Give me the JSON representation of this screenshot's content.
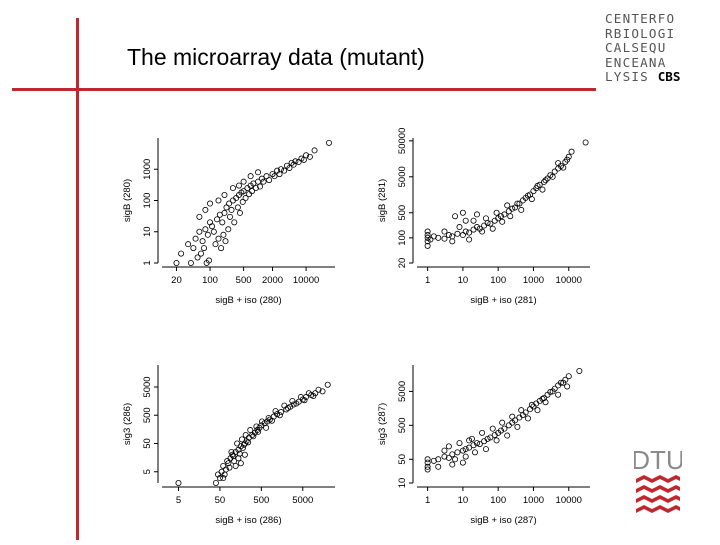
{
  "slide": {
    "title": "The microarray data (mutant)",
    "logo_cbs": {
      "rows": [
        "CENTERFO",
        "RBIOLOGI",
        "CALSEQU",
        "ENCEANA",
        "LYSIS"
      ],
      "strong": "CBS"
    },
    "logo_dtu": "DTU",
    "colors": {
      "accent": "#c1272d",
      "logo_gray": "#555555",
      "dtu_red": "#c1272d"
    }
  },
  "chart_data": [
    {
      "type": "scatter",
      "scale": "log",
      "xlabel": "sigB + iso (280)",
      "ylabel": "sigB (280)",
      "xticks": [
        "20",
        "100",
        "500",
        "2000",
        "10000"
      ],
      "yticks": [
        "1",
        "10",
        "100",
        "1000"
      ],
      "xlim": [
        10,
        40000
      ],
      "ylim": [
        1,
        10000
      ],
      "points": [
        [
          20,
          1
        ],
        [
          25,
          2
        ],
        [
          35,
          4
        ],
        [
          50,
          6
        ],
        [
          60,
          10
        ],
        [
          70,
          5
        ],
        [
          80,
          12
        ],
        [
          90,
          8
        ],
        [
          100,
          20
        ],
        [
          110,
          15
        ],
        [
          120,
          10
        ],
        [
          140,
          25
        ],
        [
          160,
          35
        ],
        [
          180,
          20
        ],
        [
          200,
          40
        ],
        [
          220,
          60
        ],
        [
          250,
          80
        ],
        [
          300,
          100
        ],
        [
          350,
          120
        ],
        [
          400,
          150
        ],
        [
          450,
          180
        ],
        [
          500,
          200
        ],
        [
          600,
          250
        ],
        [
          700,
          300
        ],
        [
          800,
          350
        ],
        [
          1000,
          400
        ],
        [
          1200,
          500
        ],
        [
          1500,
          600
        ],
        [
          2000,
          700
        ],
        [
          2500,
          900
        ],
        [
          3000,
          1000
        ],
        [
          4000,
          1300
        ],
        [
          5000,
          1600
        ],
        [
          6000,
          1800
        ],
        [
          8000,
          2200
        ],
        [
          10000,
          2800
        ],
        [
          15000,
          4000
        ],
        [
          30000,
          7000
        ],
        [
          40,
          1
        ],
        [
          45,
          3
        ],
        [
          55,
          1.5
        ],
        [
          65,
          2
        ],
        [
          75,
          3
        ],
        [
          85,
          1
        ],
        [
          95,
          1.2
        ],
        [
          130,
          4
        ],
        [
          150,
          6
        ],
        [
          170,
          3
        ],
        [
          190,
          8
        ],
        [
          210,
          5
        ],
        [
          240,
          12
        ],
        [
          260,
          30
        ],
        [
          280,
          50
        ],
        [
          320,
          20
        ],
        [
          380,
          60
        ],
        [
          420,
          40
        ],
        [
          480,
          90
        ],
        [
          550,
          120
        ],
        [
          650,
          160
        ],
        [
          750,
          200
        ],
        [
          900,
          250
        ],
        [
          1100,
          280
        ],
        [
          1300,
          400
        ],
        [
          1700,
          450
        ],
        [
          2200,
          600
        ],
        [
          2800,
          700
        ],
        [
          3500,
          900
        ],
        [
          4500,
          1100
        ],
        [
          5500,
          1400
        ],
        [
          7000,
          1700
        ],
        [
          9000,
          2000
        ],
        [
          12000,
          2500
        ],
        [
          60,
          30
        ],
        [
          80,
          50
        ],
        [
          100,
          80
        ],
        [
          150,
          100
        ],
        [
          200,
          150
        ],
        [
          300,
          250
        ],
        [
          400,
          300
        ],
        [
          500,
          400
        ],
        [
          700,
          600
        ],
        [
          1000,
          800
        ]
      ]
    },
    {
      "type": "scatter",
      "scale": "log",
      "xlabel": "sigB + iso (281)",
      "ylabel": "sigB (281)",
      "xticks": [
        "1",
        "10",
        "100",
        "1000",
        "10000"
      ],
      "yticks": [
        "20",
        "100",
        "500",
        "5000",
        "50000"
      ],
      "xlim": [
        0.5,
        40000
      ],
      "ylim": [
        20,
        60000
      ],
      "points": [
        [
          1,
          100
        ],
        [
          1,
          80
        ],
        [
          1,
          120
        ],
        [
          1,
          60
        ],
        [
          1,
          150
        ],
        [
          1.2,
          90
        ],
        [
          1.5,
          110
        ],
        [
          2,
          100
        ],
        [
          3,
          95
        ],
        [
          4,
          120
        ],
        [
          5,
          110
        ],
        [
          7,
          130
        ],
        [
          10,
          120
        ],
        [
          12,
          150
        ],
        [
          15,
          140
        ],
        [
          20,
          170
        ],
        [
          25,
          200
        ],
        [
          30,
          180
        ],
        [
          40,
          220
        ],
        [
          50,
          260
        ],
        [
          60,
          250
        ],
        [
          80,
          300
        ],
        [
          100,
          350
        ],
        [
          120,
          400
        ],
        [
          150,
          450
        ],
        [
          200,
          550
        ],
        [
          250,
          650
        ],
        [
          300,
          700
        ],
        [
          400,
          900
        ],
        [
          500,
          1100
        ],
        [
          600,
          1300
        ],
        [
          800,
          1600
        ],
        [
          1000,
          2000
        ],
        [
          1200,
          2400
        ],
        [
          1500,
          3000
        ],
        [
          2000,
          3600
        ],
        [
          2500,
          4500
        ],
        [
          3000,
          5500
        ],
        [
          4000,
          7000
        ],
        [
          5000,
          8500
        ],
        [
          6000,
          10000
        ],
        [
          8000,
          13000
        ],
        [
          10000,
          18000
        ],
        [
          12000,
          25000
        ],
        [
          30000,
          45000
        ],
        [
          3,
          150
        ],
        [
          5,
          80
        ],
        [
          8,
          200
        ],
        [
          15,
          90
        ],
        [
          20,
          300
        ],
        [
          35,
          150
        ],
        [
          45,
          350
        ],
        [
          70,
          180
        ],
        [
          90,
          500
        ],
        [
          130,
          280
        ],
        [
          180,
          800
        ],
        [
          220,
          400
        ],
        [
          350,
          900
        ],
        [
          450,
          600
        ],
        [
          700,
          1500
        ],
        [
          900,
          1200
        ],
        [
          1300,
          2800
        ],
        [
          1800,
          2200
        ],
        [
          2200,
          4000
        ],
        [
          3500,
          5000
        ],
        [
          5000,
          12000
        ],
        [
          7000,
          9000
        ],
        [
          9000,
          15000
        ],
        [
          6,
          400
        ],
        [
          10,
          500
        ],
        [
          12,
          300
        ],
        [
          25,
          450
        ]
      ]
    },
    {
      "type": "scatter",
      "scale": "log",
      "xlabel": "sigB + iso (286)",
      "ylabel": "sig3 (286)",
      "xticks": [
        "5",
        "50",
        "500",
        "5000"
      ],
      "yticks": [
        "5",
        "50",
        "500",
        "5000"
      ],
      "xlim": [
        2,
        30000
      ],
      "ylim": [
        2,
        30000
      ],
      "points": [
        [
          5,
          2
        ],
        [
          40,
          2
        ],
        [
          45,
          4
        ],
        [
          50,
          3
        ],
        [
          55,
          5
        ],
        [
          60,
          8
        ],
        [
          70,
          6
        ],
        [
          80,
          10
        ],
        [
          90,
          15
        ],
        [
          100,
          20
        ],
        [
          110,
          12
        ],
        [
          120,
          25
        ],
        [
          140,
          30
        ],
        [
          160,
          40
        ],
        [
          180,
          35
        ],
        [
          200,
          50
        ],
        [
          220,
          60
        ],
        [
          250,
          80
        ],
        [
          300,
          100
        ],
        [
          350,
          120
        ],
        [
          400,
          150
        ],
        [
          450,
          180
        ],
        [
          500,
          220
        ],
        [
          600,
          260
        ],
        [
          700,
          300
        ],
        [
          800,
          350
        ],
        [
          1000,
          450
        ],
        [
          1200,
          550
        ],
        [
          1500,
          650
        ],
        [
          2000,
          800
        ],
        [
          2500,
          1000
        ],
        [
          3000,
          1200
        ],
        [
          4000,
          1500
        ],
        [
          5000,
          1800
        ],
        [
          6000,
          2200
        ],
        [
          8000,
          2600
        ],
        [
          10000,
          3000
        ],
        [
          20000,
          6000
        ],
        [
          60,
          3
        ],
        [
          65,
          4
        ],
        [
          75,
          12
        ],
        [
          85,
          7
        ],
        [
          95,
          25
        ],
        [
          105,
          18
        ],
        [
          130,
          50
        ],
        [
          150,
          22
        ],
        [
          170,
          70
        ],
        [
          190,
          45
        ],
        [
          210,
          100
        ],
        [
          240,
          55
        ],
        [
          270,
          150
        ],
        [
          320,
          90
        ],
        [
          380,
          200
        ],
        [
          420,
          130
        ],
        [
          520,
          300
        ],
        [
          650,
          180
        ],
        [
          750,
          400
        ],
        [
          900,
          320
        ],
        [
          1100,
          700
        ],
        [
          1400,
          500
        ],
        [
          1800,
          1100
        ],
        [
          2200,
          900
        ],
        [
          2800,
          1600
        ],
        [
          3500,
          1300
        ],
        [
          4500,
          2200
        ],
        [
          5500,
          1700
        ],
        [
          7000,
          3000
        ],
        [
          9000,
          2400
        ],
        [
          12000,
          4000
        ],
        [
          15000,
          3500
        ],
        [
          120,
          8
        ],
        [
          140,
          15
        ],
        [
          160,
          10
        ],
        [
          200,
          20
        ]
      ]
    },
    {
      "type": "scatter",
      "scale": "log",
      "xlabel": "sigB + iso (287)",
      "ylabel": "sig3 (287)",
      "xticks": [
        "1",
        "10",
        "100",
        "1000",
        "10000"
      ],
      "yticks": [
        "10",
        "50",
        "500",
        "5000"
      ],
      "xlim": [
        0.5,
        40000
      ],
      "ylim": [
        10,
        30000
      ],
      "points": [
        [
          1,
          50
        ],
        [
          1,
          30
        ],
        [
          1,
          40
        ],
        [
          1,
          25
        ],
        [
          1.5,
          45
        ],
        [
          2,
          50
        ],
        [
          3,
          60
        ],
        [
          4,
          55
        ],
        [
          5,
          70
        ],
        [
          7,
          80
        ],
        [
          10,
          90
        ],
        [
          12,
          100
        ],
        [
          15,
          110
        ],
        [
          20,
          130
        ],
        [
          25,
          150
        ],
        [
          30,
          140
        ],
        [
          40,
          170
        ],
        [
          50,
          200
        ],
        [
          60,
          220
        ],
        [
          80,
          260
        ],
        [
          100,
          300
        ],
        [
          120,
          350
        ],
        [
          150,
          400
        ],
        [
          200,
          500
        ],
        [
          250,
          600
        ],
        [
          300,
          700
        ],
        [
          400,
          850
        ],
        [
          500,
          1000
        ],
        [
          600,
          1200
        ],
        [
          800,
          1500
        ],
        [
          1000,
          1800
        ],
        [
          1200,
          2200
        ],
        [
          1500,
          2600
        ],
        [
          2000,
          3200
        ],
        [
          2500,
          4000
        ],
        [
          3000,
          4800
        ],
        [
          4000,
          6000
        ],
        [
          5000,
          7500
        ],
        [
          6000,
          9000
        ],
        [
          8000,
          11000
        ],
        [
          10000,
          14000
        ],
        [
          20000,
          20000
        ],
        [
          2,
          30
        ],
        [
          3,
          90
        ],
        [
          5,
          35
        ],
        [
          8,
          150
        ],
        [
          12,
          60
        ],
        [
          18,
          200
        ],
        [
          22,
          80
        ],
        [
          35,
          300
        ],
        [
          45,
          100
        ],
        [
          70,
          400
        ],
        [
          90,
          180
        ],
        [
          130,
          600
        ],
        [
          180,
          250
        ],
        [
          250,
          900
        ],
        [
          350,
          450
        ],
        [
          450,
          1400
        ],
        [
          700,
          800
        ],
        [
          900,
          2000
        ],
        [
          1300,
          1400
        ],
        [
          1800,
          3000
        ],
        [
          2200,
          2400
        ],
        [
          3500,
          5000
        ],
        [
          5000,
          4000
        ],
        [
          7000,
          9000
        ],
        [
          9000,
          7000
        ],
        [
          4,
          120
        ],
        [
          6,
          50
        ],
        [
          10,
          40
        ],
        [
          15,
          180
        ]
      ]
    }
  ]
}
